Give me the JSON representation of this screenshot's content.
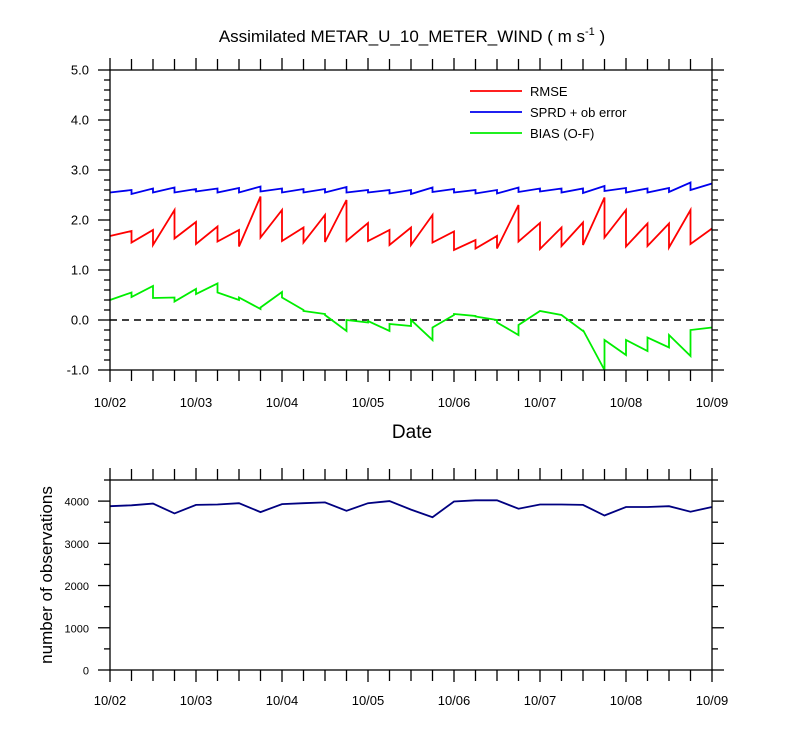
{
  "chart_data": [
    {
      "type": "line",
      "title_main": "Assimilated METAR_U_10_METER_WIND ( m s",
      "title_sup": "-1",
      "title_end": " )",
      "xlabel": "Date",
      "ylabel": "",
      "ylim": [
        -1.0,
        5.0
      ],
      "xlim": [
        0,
        7
      ],
      "x_tick_labels": [
        "10/02",
        "10/03",
        "10/04",
        "10/05",
        "10/06",
        "10/07",
        "10/08",
        "10/09"
      ],
      "y_tick_labels": [
        "-1.0",
        "0.0",
        "1.0",
        "2.0",
        "3.0",
        "4.0",
        "5.0"
      ],
      "y_tick_values": [
        -1,
        0,
        1,
        2,
        3,
        4,
        5
      ],
      "zero_line": true,
      "legend_position": "top-right",
      "colors": {
        "rmse": "#ff0000",
        "sprd": "#0000ee",
        "bias": "#00ee00",
        "zero": "#000000"
      },
      "series": [
        {
          "name": "RMSE",
          "key": "rmse",
          "values": [
            [
              0,
              1.68
            ],
            [
              0.25,
              1.78
            ],
            [
              0.25,
              1.55
            ],
            [
              0.5,
              1.8
            ],
            [
              0.5,
              1.5
            ],
            [
              0.75,
              2.2
            ],
            [
              0.75,
              1.63
            ],
            [
              1,
              1.96
            ],
            [
              1,
              1.52
            ],
            [
              1.25,
              1.87
            ],
            [
              1.25,
              1.57
            ],
            [
              1.5,
              1.8
            ],
            [
              1.5,
              1.47
            ],
            [
              1.75,
              2.47
            ],
            [
              1.75,
              1.65
            ],
            [
              2,
              2.2
            ],
            [
              2,
              1.58
            ],
            [
              2.25,
              1.85
            ],
            [
              2.25,
              1.55
            ],
            [
              2.5,
              2.1
            ],
            [
              2.5,
              1.56
            ],
            [
              2.75,
              2.4
            ],
            [
              2.75,
              1.58
            ],
            [
              3,
              1.94
            ],
            [
              3,
              1.58
            ],
            [
              3.25,
              1.8
            ],
            [
              3.25,
              1.5
            ],
            [
              3.5,
              1.85
            ],
            [
              3.5,
              1.5
            ],
            [
              3.75,
              2.1
            ],
            [
              3.75,
              1.55
            ],
            [
              4,
              1.77
            ],
            [
              4,
              1.4
            ],
            [
              4.25,
              1.6
            ],
            [
              4.25,
              1.43
            ],
            [
              4.5,
              1.68
            ],
            [
              4.5,
              1.43
            ],
            [
              4.75,
              2.3
            ],
            [
              4.75,
              1.57
            ],
            [
              5,
              1.94
            ],
            [
              5,
              1.42
            ],
            [
              5.25,
              1.85
            ],
            [
              5.25,
              1.48
            ],
            [
              5.5,
              1.95
            ],
            [
              5.5,
              1.5
            ],
            [
              5.75,
              2.45
            ],
            [
              5.75,
              1.65
            ],
            [
              6,
              2.2
            ],
            [
              6,
              1.47
            ],
            [
              6.25,
              1.93
            ],
            [
              6.25,
              1.48
            ],
            [
              6.5,
              1.93
            ],
            [
              6.5,
              1.45
            ],
            [
              6.75,
              2.2
            ],
            [
              6.75,
              1.52
            ],
            [
              7,
              1.83
            ]
          ]
        },
        {
          "name": "SPRD + ob error",
          "key": "sprd",
          "values": [
            [
              0,
              2.55
            ],
            [
              0.25,
              2.6
            ],
            [
              0.25,
              2.52
            ],
            [
              0.5,
              2.63
            ],
            [
              0.5,
              2.55
            ],
            [
              0.75,
              2.65
            ],
            [
              0.75,
              2.55
            ],
            [
              1,
              2.62
            ],
            [
              1,
              2.57
            ],
            [
              1.25,
              2.63
            ],
            [
              1.25,
              2.55
            ],
            [
              1.5,
              2.64
            ],
            [
              1.5,
              2.55
            ],
            [
              1.75,
              2.67
            ],
            [
              1.75,
              2.57
            ],
            [
              2,
              2.63
            ],
            [
              2,
              2.55
            ],
            [
              2.25,
              2.62
            ],
            [
              2.25,
              2.55
            ],
            [
              2.5,
              2.62
            ],
            [
              2.5,
              2.55
            ],
            [
              2.75,
              2.66
            ],
            [
              2.75,
              2.55
            ],
            [
              3,
              2.6
            ],
            [
              3,
              2.55
            ],
            [
              3.25,
              2.6
            ],
            [
              3.25,
              2.53
            ],
            [
              3.5,
              2.6
            ],
            [
              3.5,
              2.52
            ],
            [
              3.75,
              2.65
            ],
            [
              3.75,
              2.56
            ],
            [
              4,
              2.62
            ],
            [
              4,
              2.55
            ],
            [
              4.25,
              2.6
            ],
            [
              4.25,
              2.53
            ],
            [
              4.5,
              2.6
            ],
            [
              4.5,
              2.53
            ],
            [
              4.75,
              2.65
            ],
            [
              4.75,
              2.56
            ],
            [
              5,
              2.63
            ],
            [
              5,
              2.57
            ],
            [
              5.25,
              2.63
            ],
            [
              5.25,
              2.55
            ],
            [
              5.5,
              2.63
            ],
            [
              5.5,
              2.54
            ],
            [
              5.75,
              2.68
            ],
            [
              5.75,
              2.58
            ],
            [
              6,
              2.64
            ],
            [
              6,
              2.55
            ],
            [
              6.25,
              2.63
            ],
            [
              6.25,
              2.55
            ],
            [
              6.5,
              2.64
            ],
            [
              6.5,
              2.56
            ],
            [
              6.75,
              2.75
            ],
            [
              6.75,
              2.6
            ],
            [
              7,
              2.73
            ]
          ]
        },
        {
          "name": "BIAS (O-F)",
          "key": "bias",
          "values": [
            [
              0,
              0.4
            ],
            [
              0.25,
              0.55
            ],
            [
              0.25,
              0.46
            ],
            [
              0.5,
              0.68
            ],
            [
              0.5,
              0.44
            ],
            [
              0.75,
              0.45
            ],
            [
              0.75,
              0.37
            ],
            [
              1,
              0.62
            ],
            [
              1,
              0.52
            ],
            [
              1.25,
              0.73
            ],
            [
              1.25,
              0.55
            ],
            [
              1.5,
              0.4
            ],
            [
              1.5,
              0.45
            ],
            [
              1.75,
              0.22
            ],
            [
              1.75,
              0.25
            ],
            [
              2,
              0.56
            ],
            [
              2,
              0.45
            ],
            [
              2.25,
              0.2
            ],
            [
              2.25,
              0.18
            ],
            [
              2.5,
              0.12
            ],
            [
              2.5,
              0.1
            ],
            [
              2.75,
              -0.22
            ],
            [
              2.75,
              0.0
            ],
            [
              3,
              -0.05
            ],
            [
              3,
              -0.02
            ],
            [
              3.25,
              -0.22
            ],
            [
              3.25,
              -0.08
            ],
            [
              3.5,
              -0.12
            ],
            [
              3.5,
              0.0
            ],
            [
              3.75,
              -0.4
            ],
            [
              3.75,
              -0.15
            ],
            [
              4,
              0.1
            ],
            [
              4,
              0.12
            ],
            [
              4.25,
              0.08
            ],
            [
              4.25,
              0.07
            ],
            [
              4.5,
              0.0
            ],
            [
              4.5,
              -0.05
            ],
            [
              4.75,
              -0.3
            ],
            [
              4.75,
              -0.1
            ],
            [
              5,
              0.18
            ],
            [
              5,
              0.18
            ],
            [
              5.25,
              0.1
            ],
            [
              5.25,
              0.1
            ],
            [
              5.5,
              -0.22
            ],
            [
              5.5,
              -0.2
            ],
            [
              5.75,
              -1.0
            ],
            [
              5.75,
              -0.4
            ],
            [
              6,
              -0.7
            ],
            [
              6,
              -0.4
            ],
            [
              6.25,
              -0.62
            ],
            [
              6.25,
              -0.35
            ],
            [
              6.5,
              -0.55
            ],
            [
              6.5,
              -0.3
            ],
            [
              6.75,
              -0.72
            ],
            [
              6.75,
              -0.2
            ],
            [
              7,
              -0.15
            ]
          ]
        }
      ]
    },
    {
      "type": "line",
      "title": "",
      "xlabel": "",
      "ylabel": "number of observations",
      "ylim": [
        0,
        4500
      ],
      "xlim": [
        0,
        7
      ],
      "x_tick_labels": [
        "10/02",
        "10/03",
        "10/04",
        "10/05",
        "10/06",
        "10/07",
        "10/08",
        "10/09"
      ],
      "y_tick_labels": [
        "0",
        "1000",
        "2000",
        "3000",
        "4000"
      ],
      "y_tick_values": [
        0,
        1000,
        2000,
        3000,
        4000
      ],
      "colors": {
        "line": "#000080"
      },
      "series": [
        {
          "name": "number of observations",
          "x": [
            0,
            0.25,
            0.5,
            0.75,
            1,
            1.25,
            1.5,
            1.75,
            2,
            2.25,
            2.5,
            2.75,
            3,
            3.25,
            3.5,
            3.75,
            4,
            4.25,
            4.5,
            4.75,
            5,
            5.25,
            5.5,
            5.75,
            6,
            6.25,
            6.5,
            6.75,
            7
          ],
          "values": [
            3880,
            3900,
            3940,
            3710,
            3910,
            3920,
            3950,
            3740,
            3930,
            3950,
            3970,
            3770,
            3950,
            4000,
            3800,
            3620,
            3990,
            4020,
            4020,
            3820,
            3920,
            3920,
            3910,
            3660,
            3860,
            3860,
            3880,
            3750,
            3860
          ]
        }
      ]
    }
  ]
}
